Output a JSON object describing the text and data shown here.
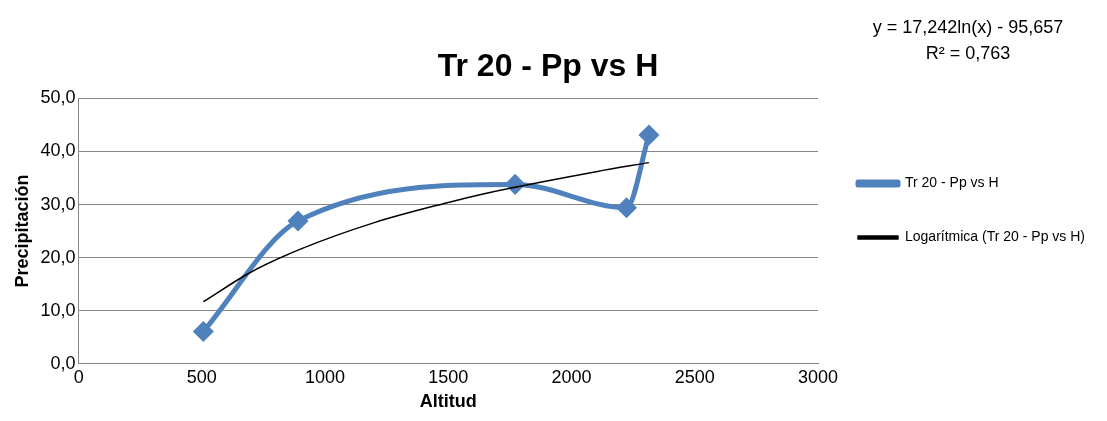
{
  "chart_data": {
    "type": "line",
    "title": "Tr 20 - Pp vs H",
    "xlabel": "Altitud",
    "ylabel": "Precipitación",
    "xlim": [
      0,
      3000
    ],
    "xticks": [
      0,
      500,
      1000,
      1500,
      2000,
      2500,
      3000
    ],
    "ylim": [
      0,
      50
    ],
    "yticks": [
      {
        "value": 0,
        "label": "0,0"
      },
      {
        "value": 10,
        "label": "10,0"
      },
      {
        "value": 20,
        "label": "20,0"
      },
      {
        "value": 30,
        "label": "30,0"
      },
      {
        "value": 40,
        "label": "40,0"
      },
      {
        "value": 50,
        "label": "50,0"
      }
    ],
    "grid": "y",
    "legend": "right",
    "annotations": [
      "y = 17,242ln(x) - 95,657",
      "R² = 0,763"
    ],
    "series": [
      {
        "name": "Tr 20 - Pp vs H",
        "color": "#4f81bd",
        "marker": "diamond",
        "x": [
          506,
          890,
          1771,
          2223,
          2314
        ],
        "values": [
          6.1,
          26.9,
          33.8,
          29.4,
          43.1
        ]
      },
      {
        "name": "Logarítmica (Tr 20 - Pp vs H)",
        "type": "line",
        "color": "#000000",
        "marker": "none",
        "x": [
          506,
          700,
          900,
          1200,
          1500,
          1650,
          2100,
          2314
        ],
        "values": [
          11.7,
          17.3,
          21.6,
          26.6,
          30.4,
          32.1,
          36.2,
          37.9
        ]
      }
    ]
  }
}
